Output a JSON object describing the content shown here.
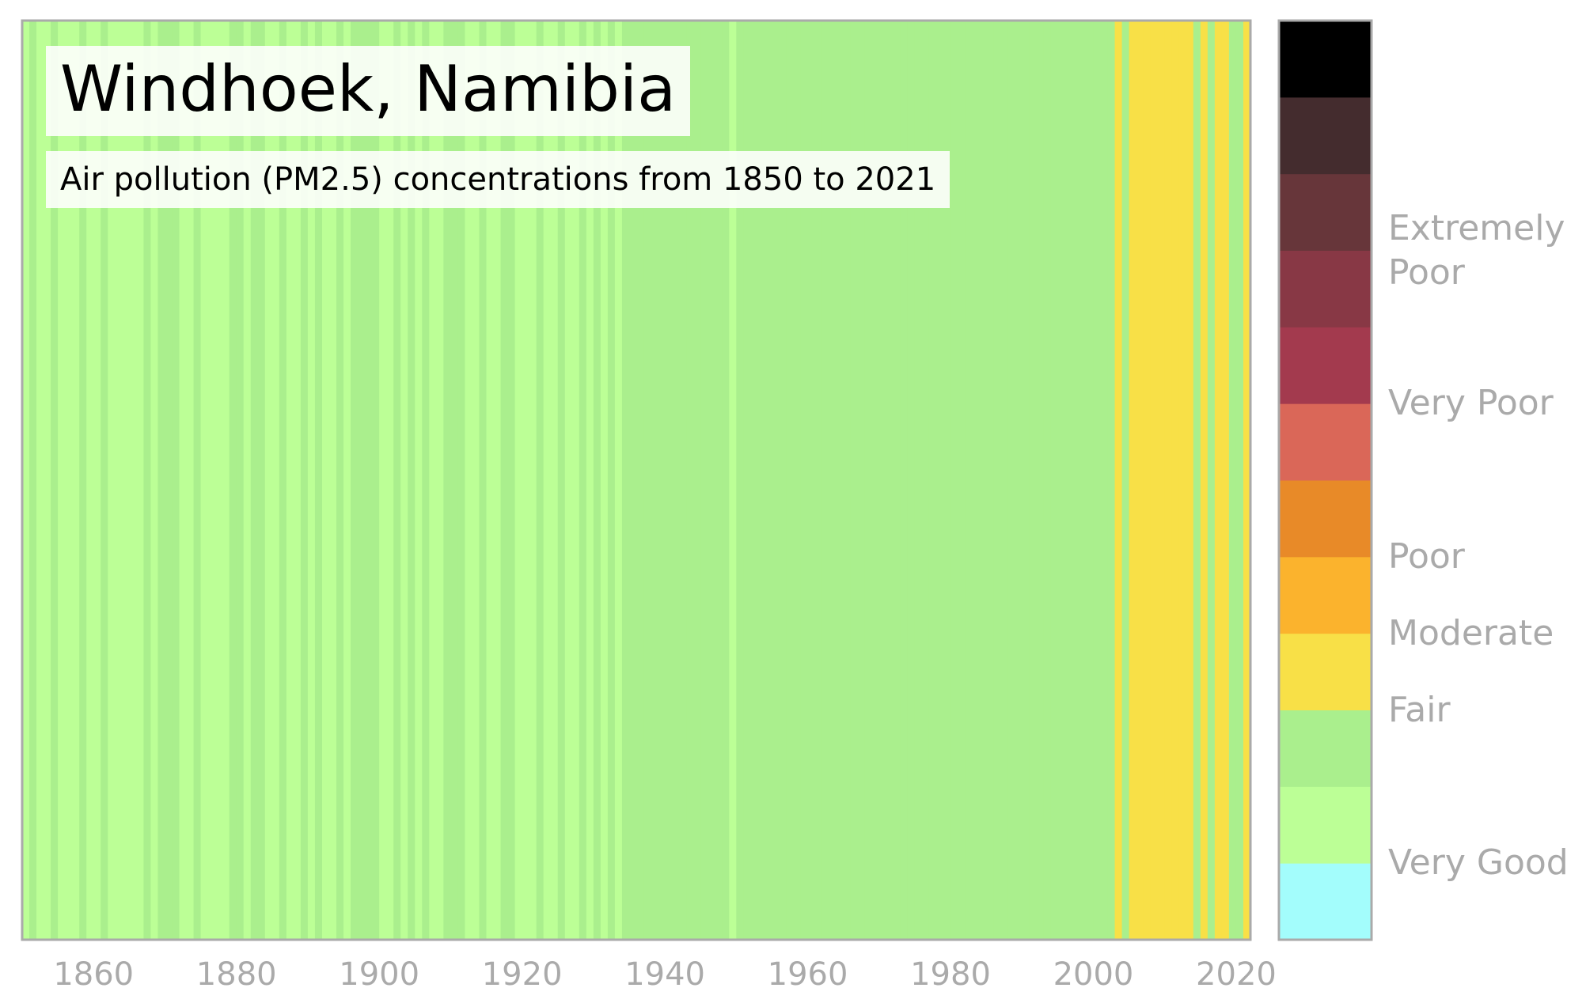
{
  "chart_data": {
    "type": "stripes",
    "title": "Windhoek, Namibia",
    "subtitle": "Air pollution (PM2.5) concentrations from 1850 to 2021",
    "x": [
      1850,
      1851,
      1852,
      1853,
      1854,
      1855,
      1856,
      1857,
      1858,
      1859,
      1860,
      1861,
      1862,
      1863,
      1864,
      1865,
      1866,
      1867,
      1868,
      1869,
      1870,
      1871,
      1872,
      1873,
      1874,
      1875,
      1876,
      1877,
      1878,
      1879,
      1880,
      1881,
      1882,
      1883,
      1884,
      1885,
      1886,
      1887,
      1888,
      1889,
      1890,
      1891,
      1892,
      1893,
      1894,
      1895,
      1896,
      1897,
      1898,
      1899,
      1900,
      1901,
      1902,
      1903,
      1904,
      1905,
      1906,
      1907,
      1908,
      1909,
      1910,
      1911,
      1912,
      1913,
      1914,
      1915,
      1916,
      1917,
      1918,
      1919,
      1920,
      1921,
      1922,
      1923,
      1924,
      1925,
      1926,
      1927,
      1928,
      1929,
      1930,
      1931,
      1932,
      1933,
      1934,
      1935,
      1936,
      1937,
      1938,
      1939,
      1940,
      1941,
      1942,
      1943,
      1944,
      1945,
      1946,
      1947,
      1948,
      1949,
      1950,
      1951,
      1952,
      1953,
      1954,
      1955,
      1956,
      1957,
      1958,
      1959,
      1960,
      1961,
      1962,
      1963,
      1964,
      1965,
      1966,
      1967,
      1968,
      1969,
      1970,
      1971,
      1972,
      1973,
      1974,
      1975,
      1976,
      1977,
      1978,
      1979,
      1980,
      1981,
      1982,
      1983,
      1984,
      1985,
      1986,
      1987,
      1988,
      1989,
      1990,
      1991,
      1992,
      1993,
      1994,
      1995,
      1996,
      1997,
      1998,
      1999,
      2000,
      2001,
      2002,
      2003,
      2004,
      2005,
      2006,
      2007,
      2008,
      2009,
      2010,
      2011,
      2012,
      2013,
      2014,
      2015,
      2016,
      2017,
      2018,
      2019,
      2020,
      2021
    ],
    "values": [
      1,
      2,
      1,
      1,
      2,
      1,
      1,
      1,
      2,
      1,
      1,
      2,
      1,
      1,
      1,
      1,
      1,
      2,
      1,
      2,
      2,
      2,
      1,
      1,
      2,
      1,
      1,
      1,
      1,
      2,
      2,
      1,
      2,
      2,
      1,
      1,
      2,
      1,
      1,
      2,
      1,
      2,
      1,
      1,
      2,
      1,
      2,
      2,
      2,
      2,
      1,
      1,
      2,
      1,
      2,
      1,
      2,
      1,
      1,
      2,
      2,
      2,
      1,
      1,
      2,
      1,
      1,
      2,
      2,
      1,
      1,
      1,
      2,
      1,
      1,
      2,
      1,
      1,
      2,
      1,
      2,
      1,
      2,
      1,
      2,
      2,
      2,
      2,
      2,
      2,
      2,
      2,
      2,
      2,
      2,
      2,
      2,
      2,
      2,
      1,
      2,
      2,
      2,
      2,
      2,
      2,
      2,
      2,
      2,
      2,
      2,
      2,
      2,
      2,
      2,
      2,
      2,
      2,
      2,
      2,
      2,
      2,
      2,
      2,
      2,
      2,
      2,
      2,
      2,
      2,
      2,
      2,
      2,
      2,
      2,
      2,
      2,
      2,
      2,
      2,
      2,
      2,
      2,
      2,
      2,
      2,
      2,
      2,
      2,
      2,
      2,
      2,
      2,
      3,
      2,
      3,
      3,
      3,
      3,
      3,
      3,
      3,
      3,
      3,
      2,
      3,
      2,
      3,
      3,
      2,
      2,
      3
    ],
    "xlim": [
      1850,
      2022
    ],
    "xticks": [
      1860,
      1880,
      1900,
      1920,
      1940,
      1960,
      1980,
      2000,
      2020
    ],
    "colorbar": {
      "colors": [
        "#a3fdfc",
        "#bcff96",
        "#aaef8d",
        "#f8e047",
        "#fbb32d",
        "#e88a28",
        "#da6758",
        "#a33a4e",
        "#883845",
        "#67363a",
        "#442c2e",
        "#000000"
      ],
      "clim": [
        0,
        12
      ],
      "ticks": [
        {
          "value": 1,
          "label": "Very Good"
        },
        {
          "value": 3,
          "label": "Fair"
        },
        {
          "value": 4,
          "label": "Moderate"
        },
        {
          "value": 5,
          "label": "Poor"
        },
        {
          "value": 7,
          "label": "Very Poor"
        },
        {
          "value": 9,
          "label": "Extremely Poor"
        }
      ]
    }
  }
}
